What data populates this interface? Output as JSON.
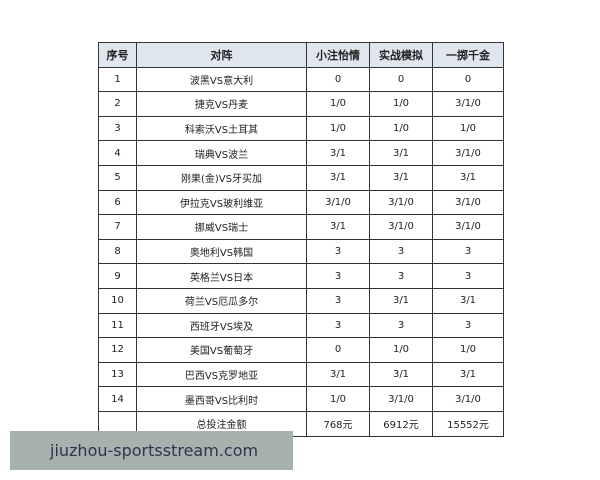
{
  "table": {
    "headers": [
      "序号",
      "对阵",
      "小注怡情",
      "实战模拟",
      "一掷千金"
    ],
    "rows": [
      [
        "1",
        "波黑VS意大利",
        "0",
        "0",
        "0"
      ],
      [
        "2",
        "捷克VS丹麦",
        "1/0",
        "1/0",
        "3/1/0"
      ],
      [
        "3",
        "科索沃VS土耳其",
        "1/0",
        "1/0",
        "1/0"
      ],
      [
        "4",
        "瑞典VS波兰",
        "3/1",
        "3/1",
        "3/1/0"
      ],
      [
        "5",
        "刚果(金)VS牙买加",
        "3/1",
        "3/1",
        "3/1"
      ],
      [
        "6",
        "伊拉克VS玻利维亚",
        "3/1/0",
        "3/1/0",
        "3/1/0"
      ],
      [
        "7",
        "挪威VS瑞士",
        "3/1",
        "3/1/0",
        "3/1/0"
      ],
      [
        "8",
        "奥地利VS韩国",
        "3",
        "3",
        "3"
      ],
      [
        "9",
        "英格兰VS日本",
        "3",
        "3",
        "3"
      ],
      [
        "10",
        "荷兰VS厄瓜多尔",
        "3",
        "3/1",
        "3/1"
      ],
      [
        "11",
        "西班牙VS埃及",
        "3",
        "3",
        "3"
      ],
      [
        "12",
        "美国VS葡萄牙",
        "0",
        "1/0",
        "1/0"
      ],
      [
        "13",
        "巴西VS克罗地亚",
        "3/1",
        "3/1",
        "3/1"
      ],
      [
        "14",
        "墨西哥VS比利时",
        "1/0",
        "3/1/0",
        "3/1/0"
      ]
    ],
    "total": {
      "label": "总投注金额",
      "values": [
        "768元",
        "6912元",
        "15552元"
      ]
    }
  },
  "watermark": "jiuzhou-sportsstream.com"
}
